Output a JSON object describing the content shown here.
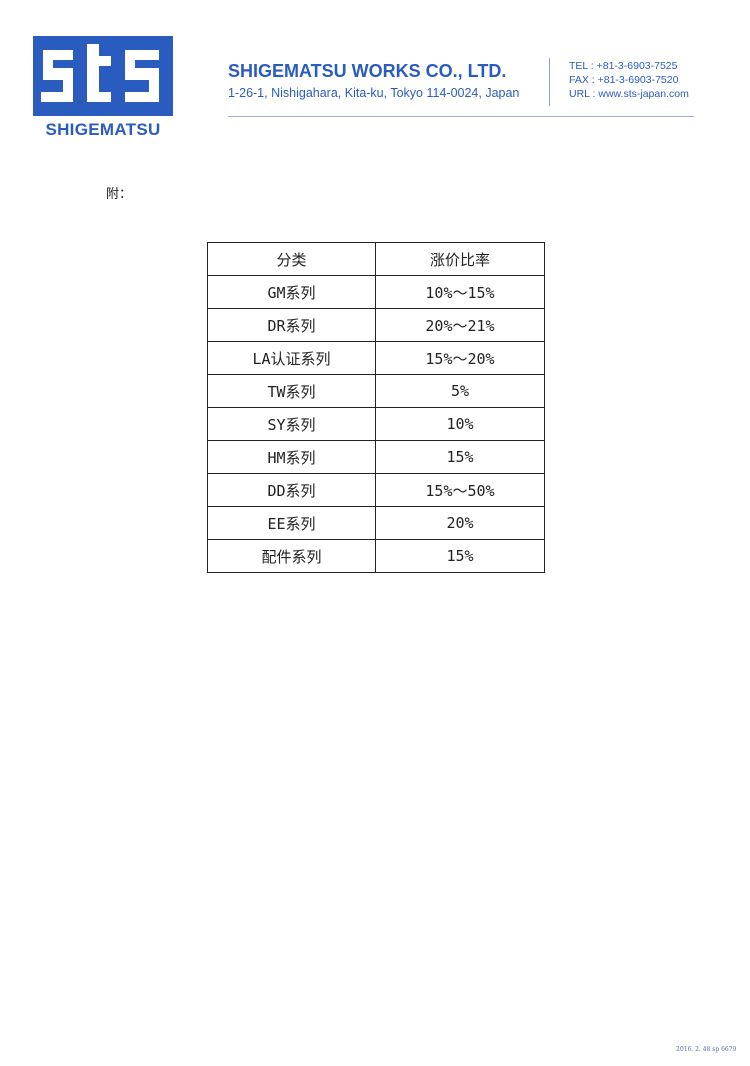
{
  "letterhead": {
    "logo_text": "sts",
    "logo_name": "SHIGEMATSU",
    "company_name": "SHIGEMATSU WORKS CO., LTD.",
    "address": "1-26-1, Nishigahara, Kita-ku, Tokyo 114-0024, Japan",
    "tel": "TEL : +81-3-6903-7525",
    "fax": "FAX : +81-3-6903-7520",
    "url": "URL : www.sts-japan.com",
    "brand_color": "#2a5cc0"
  },
  "attachment_label": "附：",
  "table": {
    "headers": [
      "分类",
      "涨价比率"
    ],
    "rows": [
      [
        "GM系列",
        "10%～15%"
      ],
      [
        "DR系列",
        "20%～21%"
      ],
      [
        "LA认证系列",
        "15%～20%"
      ],
      [
        "TW系列",
        "5%"
      ],
      [
        "SY系列",
        "10%"
      ],
      [
        "HM系列",
        "15%"
      ],
      [
        "DD系列",
        "15%～50%"
      ],
      [
        "EE系列",
        "20%"
      ],
      [
        "配件系列",
        "15%"
      ]
    ]
  },
  "footer_stamp": "2016. 2. 48 sp 6679"
}
